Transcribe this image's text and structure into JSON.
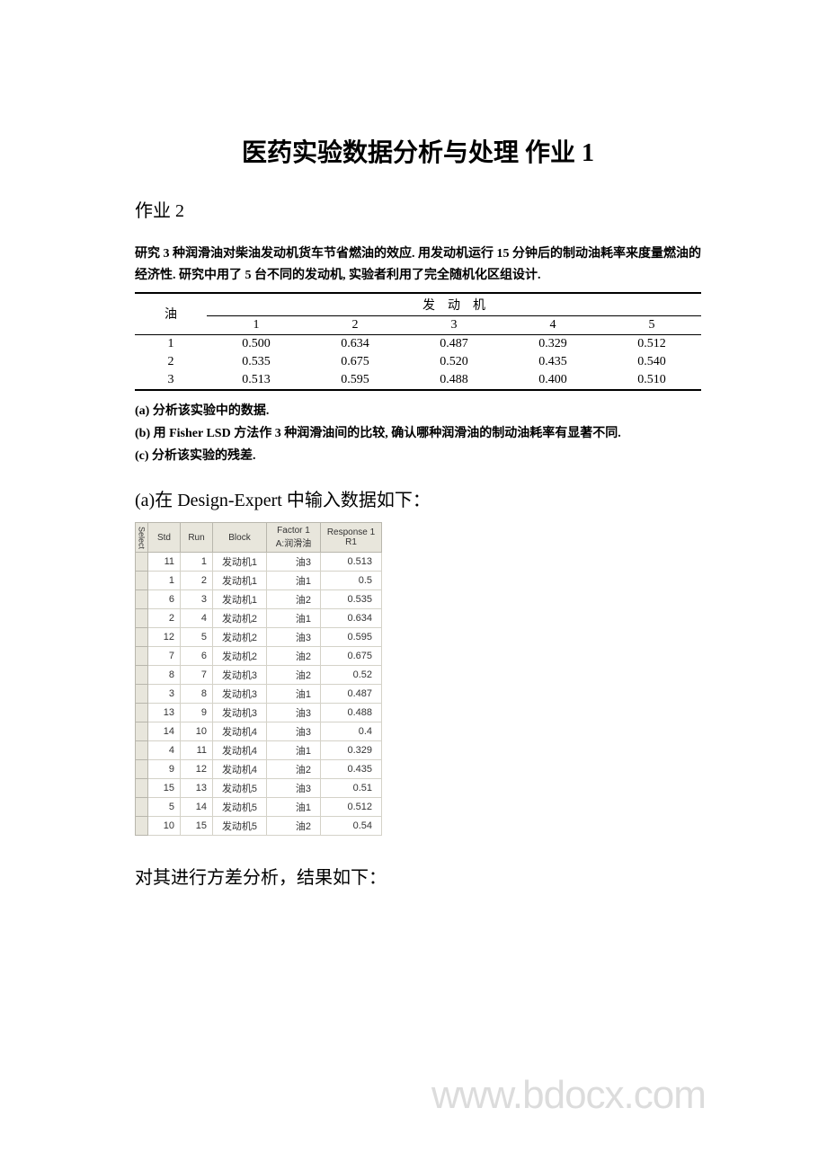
{
  "title": "医药实验数据分析与处理 作业 1",
  "subheading": "作业 2",
  "problem": {
    "line1": "研究 3 种润滑油对柴油发动机货车节省燃油的效应. 用发动机运行 15 分钟后的制动油耗率来度量燃油的经济性. 研究中用了 5 台不同的发动机, 实验者利用了完全随机化区组设计."
  },
  "engine_table": {
    "oil_label": "油",
    "engine_label": "发　动　机",
    "cols": [
      "1",
      "2",
      "3",
      "4",
      "5"
    ],
    "rows": [
      {
        "oil": "1",
        "vals": [
          "0.500",
          "0.634",
          "0.487",
          "0.329",
          "0.512"
        ]
      },
      {
        "oil": "2",
        "vals": [
          "0.535",
          "0.675",
          "0.520",
          "0.435",
          "0.540"
        ]
      },
      {
        "oil": "3",
        "vals": [
          "0.513",
          "0.595",
          "0.488",
          "0.400",
          "0.510"
        ]
      }
    ]
  },
  "questions": {
    "a": "(a)  分析该实验中的数据.",
    "b": "(b)  用 Fisher LSD 方法作 3 种润滑油间的比较, 确认哪种润滑油的制动油耗率有显著不同.",
    "c": "(c)  分析该实验的残差."
  },
  "answer_a_intro": "(a)在 Design-Expert 中输入数据如下：",
  "de_table": {
    "headers": {
      "select": "Select",
      "std": "Std",
      "run": "Run",
      "block": "Block",
      "factor": "Factor 1\nA:润滑油",
      "response": "Response 1\nR1"
    },
    "rows": [
      {
        "std": 11,
        "run": 1,
        "block": "发动机1",
        "factor": "油3",
        "r1": "0.513"
      },
      {
        "std": 1,
        "run": 2,
        "block": "发动机1",
        "factor": "油1",
        "r1": "0.5"
      },
      {
        "std": 6,
        "run": 3,
        "block": "发动机1",
        "factor": "油2",
        "r1": "0.535"
      },
      {
        "std": 2,
        "run": 4,
        "block": "发动机2",
        "factor": "油1",
        "r1": "0.634"
      },
      {
        "std": 12,
        "run": 5,
        "block": "发动机2",
        "factor": "油3",
        "r1": "0.595"
      },
      {
        "std": 7,
        "run": 6,
        "block": "发动机2",
        "factor": "油2",
        "r1": "0.675"
      },
      {
        "std": 8,
        "run": 7,
        "block": "发动机3",
        "factor": "油2",
        "r1": "0.52"
      },
      {
        "std": 3,
        "run": 8,
        "block": "发动机3",
        "factor": "油1",
        "r1": "0.487"
      },
      {
        "std": 13,
        "run": 9,
        "block": "发动机3",
        "factor": "油3",
        "r1": "0.488"
      },
      {
        "std": 14,
        "run": 10,
        "block": "发动机4",
        "factor": "油3",
        "r1": "0.4"
      },
      {
        "std": 4,
        "run": 11,
        "block": "发动机4",
        "factor": "油1",
        "r1": "0.329"
      },
      {
        "std": 9,
        "run": 12,
        "block": "发动机4",
        "factor": "油2",
        "r1": "0.435"
      },
      {
        "std": 15,
        "run": 13,
        "block": "发动机5",
        "factor": "油3",
        "r1": "0.51"
      },
      {
        "std": 5,
        "run": 14,
        "block": "发动机5",
        "factor": "油1",
        "r1": "0.512"
      },
      {
        "std": 10,
        "run": 15,
        "block": "发动机5",
        "factor": "油2",
        "r1": "0.54"
      }
    ]
  },
  "watermark": "www.bdocx.com",
  "conclusion": "对其进行方差分析，结果如下："
}
